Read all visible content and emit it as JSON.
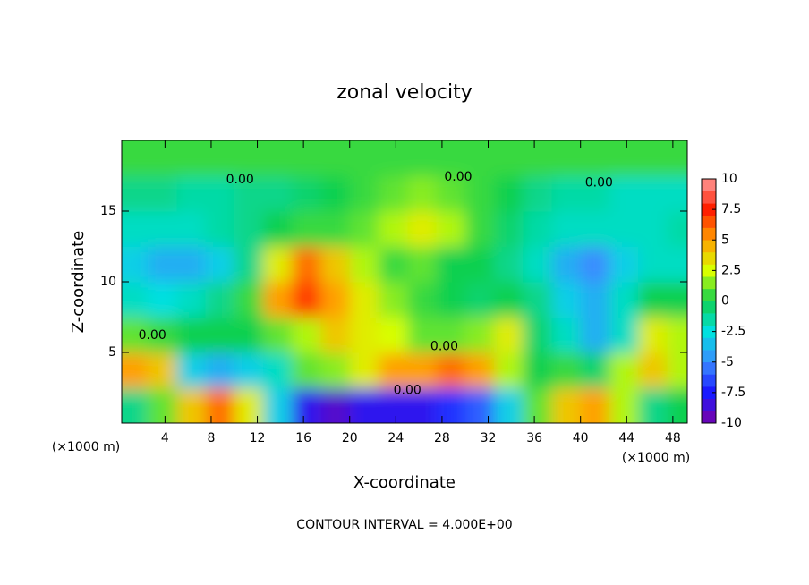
{
  "chart_data": {
    "type": "heatmap",
    "title": "zonal velocity",
    "x_label": "X-coordinate",
    "y_label": "Z-coordinate",
    "x_unit": "(×1000 m)",
    "y_unit": "(×1000 m)",
    "footnote": "CONTOUR INTERVAL = 4.000E+00",
    "x": [
      1.25,
      3.75,
      6.25,
      8.75,
      11.25,
      13.75,
      16.25,
      18.75,
      21.25,
      23.75,
      26.25,
      28.75,
      31.25,
      33.75,
      36.25,
      38.75,
      41.25,
      43.75,
      46.25,
      48.75
    ],
    "z": [
      1.25,
      3.75,
      6.25,
      8.75,
      11.25,
      13.75,
      16.25,
      18.75
    ],
    "values": [
      [
        -1,
        1,
        4,
        6,
        3,
        -3,
        -8,
        -9,
        -8,
        -8,
        -8,
        -7,
        -6,
        -3,
        1,
        4,
        5,
        2,
        -1,
        0
      ],
      [
        5,
        4,
        -3,
        -4,
        -3,
        -2,
        1,
        1.5,
        3,
        5,
        5,
        6,
        5,
        2,
        0,
        0.5,
        -0.5,
        2,
        4,
        2
      ],
      [
        1,
        0.5,
        0,
        0,
        0,
        1,
        2,
        4,
        3,
        2.5,
        1,
        1,
        1.5,
        3,
        -0.5,
        -2,
        -4,
        -2,
        3,
        2
      ],
      [
        -2,
        -2.5,
        -2,
        -1,
        0.5,
        5,
        7,
        5,
        3,
        1.5,
        0.5,
        0,
        -0.5,
        0,
        -1,
        -3,
        -4,
        -2,
        0,
        0
      ],
      [
        -3,
        -4,
        -4,
        -3,
        -1,
        3,
        6,
        4,
        2,
        0.5,
        1,
        0,
        0,
        -1,
        -2,
        -4,
        -5,
        -3,
        -2,
        -2
      ],
      [
        -2,
        -2,
        -2,
        -1.5,
        -1,
        0,
        0.5,
        0.5,
        1,
        2,
        3,
        2,
        0.5,
        -0.5,
        -1.5,
        -2,
        -2,
        -2,
        -2,
        -1.5
      ],
      [
        -1,
        -1,
        -1.5,
        -1.5,
        -1,
        -1,
        -0.5,
        0,
        0.5,
        1,
        1.5,
        1,
        0.5,
        0,
        -1,
        -1.5,
        -1.5,
        -2,
        -2,
        -2
      ],
      [
        0.5,
        0.5,
        0.5,
        0.5,
        0.5,
        0.5,
        0.5,
        0.5,
        0.5,
        0.5,
        0.5,
        0.5,
        0.5,
        0.5,
        0.5,
        0.5,
        0.5,
        0.5,
        0.5,
        0.5
      ]
    ],
    "xlim": [
      0.25,
      49.25
    ],
    "ylim": [
      0,
      20
    ],
    "xticks": [
      4,
      8,
      12,
      16,
      20,
      24,
      28,
      32,
      36,
      40,
      44,
      48
    ],
    "yticks": [
      5,
      10,
      15
    ],
    "clim": [
      -10,
      10
    ],
    "cticks": [
      10,
      7.5,
      5,
      2.5,
      0,
      -2.5,
      -5,
      -7.5,
      -10
    ],
    "colors": [
      "#7a00a8",
      "#1a1aff",
      "#3a8cff",
      "#00e0e0",
      "#10d050",
      "#d8ff00",
      "#ffa000",
      "#ff2000",
      "#ff9a9a"
    ],
    "annotations": [
      {
        "text": "0.00",
        "x": 10.5,
        "z": 17.2
      },
      {
        "text": "0.00",
        "x": 29.4,
        "z": 17.4
      },
      {
        "text": "0.00",
        "x": 41.6,
        "z": 17.0
      },
      {
        "text": "0.00",
        "x": 2.9,
        "z": 6.2
      },
      {
        "text": "0.00",
        "x": 28.2,
        "z": 5.4
      },
      {
        "text": "0.00",
        "x": 25.0,
        "z": 2.3
      }
    ]
  }
}
